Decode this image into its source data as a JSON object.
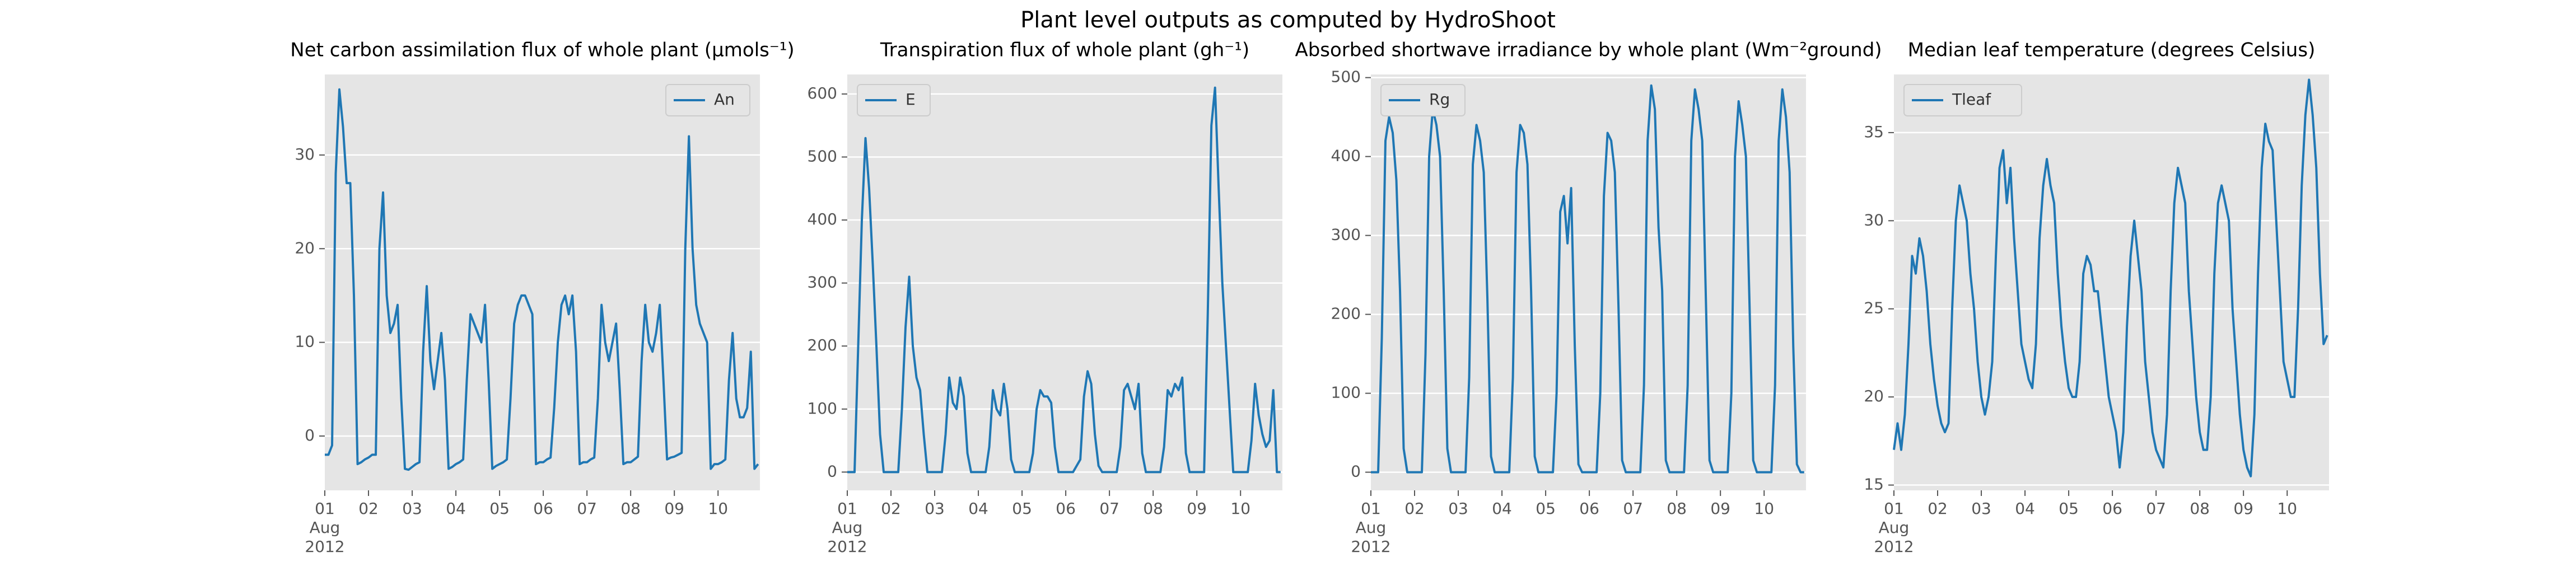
{
  "title": "Plant level outputs as computed by HydroShoot",
  "chart_data": [
    {
      "type": "line",
      "title": "Net carbon assimilation flux of whole plant (μmols⁻¹)",
      "legend": "upper right",
      "grid": "y",
      "x": [
        0,
        2,
        4,
        6,
        8,
        10,
        12,
        14,
        16,
        18,
        20,
        22,
        24,
        26,
        28,
        30,
        32,
        34,
        36,
        38,
        40,
        42,
        44,
        46,
        48,
        50,
        52,
        54,
        56,
        58,
        60,
        62,
        64,
        66,
        68,
        70,
        72,
        74,
        76,
        78,
        80,
        82,
        84,
        86,
        88,
        90,
        92,
        94,
        96,
        98,
        100,
        102,
        104,
        106,
        108,
        110,
        112,
        114,
        116,
        118,
        120,
        122,
        124,
        126,
        128,
        130,
        132,
        134,
        136,
        138,
        140,
        142,
        144,
        146,
        148,
        150,
        152,
        154,
        156,
        158,
        160,
        162,
        164,
        166,
        168,
        170,
        172,
        174,
        176,
        178,
        180,
        182,
        184,
        186,
        188,
        190,
        192,
        194,
        196,
        198,
        200,
        202,
        204,
        206,
        208,
        210,
        212,
        214,
        216,
        218,
        220,
        222,
        224,
        226,
        228,
        230,
        232,
        234,
        236,
        238
      ],
      "xlim": [
        0,
        239
      ],
      "xticks": [
        {
          "value": 0,
          "label": "01\nAug\n2012"
        },
        {
          "value": 24,
          "label": "02"
        },
        {
          "value": 48,
          "label": "03"
        },
        {
          "value": 72,
          "label": "04"
        },
        {
          "value": 96,
          "label": "05"
        },
        {
          "value": 120,
          "label": "06"
        },
        {
          "value": 144,
          "label": "07"
        },
        {
          "value": 168,
          "label": "08"
        },
        {
          "value": 192,
          "label": "09"
        },
        {
          "value": 216,
          "label": "10"
        }
      ],
      "ylim": [
        -5.8,
        38.6
      ],
      "yticks": [
        0,
        10,
        20,
        30
      ],
      "series": [
        {
          "name": "An",
          "color": "#1f77b4",
          "values": [
            -2,
            -2,
            -1,
            28,
            37,
            33,
            27,
            27,
            15,
            -3,
            -2.8,
            -2.5,
            -2.3,
            -2,
            -2,
            20,
            26,
            15,
            11,
            12,
            14,
            4,
            -3.5,
            -3.6,
            -3.3,
            -3,
            -2.8,
            9,
            16,
            8,
            5,
            8,
            11,
            6,
            -3.5,
            -3.3,
            -3,
            -2.8,
            -2.5,
            6,
            13,
            12,
            11,
            10,
            14,
            6,
            -3.5,
            -3.2,
            -3,
            -2.8,
            -2.5,
            4,
            12,
            14,
            15,
            15,
            14,
            13,
            -3,
            -2.8,
            -2.8,
            -2.5,
            -2.3,
            3,
            10,
            14,
            15,
            13,
            15,
            9,
            -3,
            -2.8,
            -2.8,
            -2.5,
            -2.3,
            4,
            14,
            10,
            8,
            10,
            12,
            5,
            -3,
            -2.8,
            -2.8,
            -2.5,
            -2.2,
            8,
            14,
            10,
            9,
            11,
            14,
            6,
            -2.5,
            -2.3,
            -2.2,
            -2,
            -1.8,
            20,
            32,
            20,
            14,
            12,
            11,
            10,
            -3.5,
            -3,
            -3,
            -2.8,
            -2.5,
            6,
            11,
            4,
            2,
            2,
            3,
            9,
            -3.5,
            -3
          ]
        }
      ]
    },
    {
      "type": "line",
      "title": "Transpiration flux of whole plant (gh⁻¹)",
      "legend": "upper left",
      "grid": "y",
      "x": [
        0,
        2,
        4,
        6,
        8,
        10,
        12,
        14,
        16,
        18,
        20,
        22,
        24,
        26,
        28,
        30,
        32,
        34,
        36,
        38,
        40,
        42,
        44,
        46,
        48,
        50,
        52,
        54,
        56,
        58,
        60,
        62,
        64,
        66,
        68,
        70,
        72,
        74,
        76,
        78,
        80,
        82,
        84,
        86,
        88,
        90,
        92,
        94,
        96,
        98,
        100,
        102,
        104,
        106,
        108,
        110,
        112,
        114,
        116,
        118,
        120,
        122,
        124,
        126,
        128,
        130,
        132,
        134,
        136,
        138,
        140,
        142,
        144,
        146,
        148,
        150,
        152,
        154,
        156,
        158,
        160,
        162,
        164,
        166,
        168,
        170,
        172,
        174,
        176,
        178,
        180,
        182,
        184,
        186,
        188,
        190,
        192,
        194,
        196,
        198,
        200,
        202,
        204,
        206,
        208,
        210,
        212,
        214,
        216,
        218,
        220,
        222,
        224,
        226,
        228,
        230,
        232,
        234,
        236,
        238
      ],
      "xlim": [
        0,
        239
      ],
      "xticks": [
        {
          "value": 0,
          "label": "01\nAug\n2012"
        },
        {
          "value": 24,
          "label": "02"
        },
        {
          "value": 48,
          "label": "03"
        },
        {
          "value": 72,
          "label": "04"
        },
        {
          "value": 96,
          "label": "05"
        },
        {
          "value": 120,
          "label": "06"
        },
        {
          "value": 144,
          "label": "07"
        },
        {
          "value": 168,
          "label": "08"
        },
        {
          "value": 192,
          "label": "09"
        },
        {
          "value": 216,
          "label": "10"
        }
      ],
      "ylim": [
        -29,
        631
      ],
      "yticks": [
        0,
        100,
        200,
        300,
        400,
        500,
        600
      ],
      "series": [
        {
          "name": "E",
          "color": "#1f77b4",
          "values": [
            0,
            0,
            0,
            200,
            400,
            530,
            450,
            330,
            200,
            60,
            0,
            0,
            0,
            0,
            0,
            100,
            230,
            310,
            200,
            150,
            130,
            60,
            0,
            0,
            0,
            0,
            0,
            60,
            150,
            110,
            100,
            150,
            120,
            30,
            0,
            0,
            0,
            0,
            0,
            40,
            130,
            100,
            90,
            140,
            100,
            20,
            0,
            0,
            0,
            0,
            0,
            30,
            100,
            130,
            120,
            120,
            110,
            40,
            0,
            0,
            0,
            0,
            0,
            10,
            20,
            120,
            160,
            140,
            60,
            10,
            0,
            0,
            0,
            0,
            0,
            40,
            130,
            140,
            120,
            100,
            140,
            30,
            0,
            0,
            0,
            0,
            0,
            40,
            130,
            120,
            140,
            130,
            150,
            30,
            0,
            0,
            0,
            0,
            0,
            250,
            550,
            610,
            450,
            300,
            200,
            100,
            0,
            0,
            0,
            0,
            0,
            50,
            140,
            90,
            60,
            40,
            50,
            130,
            0,
            0
          ]
        }
      ]
    },
    {
      "type": "line",
      "title": "Absorbed shortwave irradiance by whole plant (Wm⁻²ground)",
      "legend": "upper left",
      "grid": "y",
      "x": [
        0,
        2,
        4,
        6,
        8,
        10,
        12,
        14,
        16,
        18,
        20,
        22,
        24,
        26,
        28,
        30,
        32,
        34,
        36,
        38,
        40,
        42,
        44,
        46,
        48,
        50,
        52,
        54,
        56,
        58,
        60,
        62,
        64,
        66,
        68,
        70,
        72,
        74,
        76,
        78,
        80,
        82,
        84,
        86,
        88,
        90,
        92,
        94,
        96,
        98,
        100,
        102,
        104,
        106,
        108,
        110,
        112,
        114,
        116,
        118,
        120,
        122,
        124,
        126,
        128,
        130,
        132,
        134,
        136,
        138,
        140,
        142,
        144,
        146,
        148,
        150,
        152,
        154,
        156,
        158,
        160,
        162,
        164,
        166,
        168,
        170,
        172,
        174,
        176,
        178,
        180,
        182,
        184,
        186,
        188,
        190,
        192,
        194,
        196,
        198,
        200,
        202,
        204,
        206,
        208,
        210,
        212,
        214,
        216,
        218,
        220,
        222,
        224,
        226,
        228,
        230,
        232,
        234,
        236,
        238
      ],
      "xlim": [
        0,
        239
      ],
      "xticks": [
        {
          "value": 0,
          "label": "01\nAug\n2012"
        },
        {
          "value": 24,
          "label": "02"
        },
        {
          "value": 48,
          "label": "03"
        },
        {
          "value": 72,
          "label": "04"
        },
        {
          "value": 96,
          "label": "05"
        },
        {
          "value": 120,
          "label": "06"
        },
        {
          "value": 144,
          "label": "07"
        },
        {
          "value": 168,
          "label": "08"
        },
        {
          "value": 192,
          "label": "09"
        },
        {
          "value": 216,
          "label": "10"
        }
      ],
      "ylim": [
        -23,
        504
      ],
      "yticks": [
        0,
        100,
        200,
        300,
        400,
        500
      ],
      "series": [
        {
          "name": "Rg",
          "color": "#1f77b4",
          "values": [
            0,
            0,
            0,
            170,
            420,
            450,
            430,
            370,
            230,
            30,
            0,
            0,
            0,
            0,
            0,
            150,
            400,
            460,
            440,
            400,
            230,
            30,
            0,
            0,
            0,
            0,
            0,
            120,
            390,
            440,
            420,
            380,
            220,
            20,
            0,
            0,
            0,
            0,
            0,
            120,
            380,
            440,
            430,
            390,
            230,
            20,
            0,
            0,
            0,
            0,
            0,
            100,
            330,
            350,
            290,
            360,
            160,
            10,
            0,
            0,
            0,
            0,
            0,
            100,
            350,
            430,
            420,
            380,
            210,
            15,
            0,
            0,
            0,
            0,
            0,
            110,
            420,
            490,
            460,
            310,
            230,
            15,
            0,
            0,
            0,
            0,
            0,
            110,
            420,
            485,
            460,
            420,
            220,
            15,
            0,
            0,
            0,
            0,
            0,
            100,
            400,
            470,
            440,
            400,
            210,
            15,
            0,
            0,
            0,
            0,
            0,
            110,
            420,
            485,
            450,
            380,
            160,
            10,
            0,
            0
          ]
        }
      ]
    },
    {
      "type": "line",
      "title": "Median leaf temperature (degrees Celsius)",
      "legend": "upper left",
      "grid": "y",
      "x": [
        0,
        2,
        4,
        6,
        8,
        10,
        12,
        14,
        16,
        18,
        20,
        22,
        24,
        26,
        28,
        30,
        32,
        34,
        36,
        38,
        40,
        42,
        44,
        46,
        48,
        50,
        52,
        54,
        56,
        58,
        60,
        62,
        64,
        66,
        68,
        70,
        72,
        74,
        76,
        78,
        80,
        82,
        84,
        86,
        88,
        90,
        92,
        94,
        96,
        98,
        100,
        102,
        104,
        106,
        108,
        110,
        112,
        114,
        116,
        118,
        120,
        122,
        124,
        126,
        128,
        130,
        132,
        134,
        136,
        138,
        140,
        142,
        144,
        146,
        148,
        150,
        152,
        154,
        156,
        158,
        160,
        162,
        164,
        166,
        168,
        170,
        172,
        174,
        176,
        178,
        180,
        182,
        184,
        186,
        188,
        190,
        192,
        194,
        196,
        198,
        200,
        202,
        204,
        206,
        208,
        210,
        212,
        214,
        216,
        218,
        220,
        222,
        224,
        226,
        228,
        230,
        232,
        234,
        236,
        238
      ],
      "xlim": [
        0,
        239
      ],
      "xticks": [
        {
          "value": 0,
          "label": "01\nAug\n2012"
        },
        {
          "value": 24,
          "label": "02"
        },
        {
          "value": 48,
          "label": "03"
        },
        {
          "value": 72,
          "label": "04"
        },
        {
          "value": 96,
          "label": "05"
        },
        {
          "value": 120,
          "label": "06"
        },
        {
          "value": 144,
          "label": "07"
        },
        {
          "value": 168,
          "label": "08"
        },
        {
          "value": 192,
          "label": "09"
        },
        {
          "value": 216,
          "label": "10"
        }
      ],
      "ylim": [
        14.7,
        38.3
      ],
      "yticks": [
        15,
        20,
        25,
        30,
        35
      ],
      "series": [
        {
          "name": "Tleaf",
          "color": "#1f77b4",
          "values": [
            17,
            18.5,
            17,
            19,
            23,
            28,
            27,
            29,
            28,
            26,
            23,
            21,
            19.5,
            18.5,
            18,
            18.5,
            25,
            30,
            32,
            31,
            30,
            27,
            25,
            22,
            20,
            19,
            20,
            22,
            28,
            33,
            34,
            31,
            33,
            29,
            26,
            23,
            22,
            21,
            20.5,
            23,
            29,
            32,
            33.5,
            32,
            31,
            27,
            24,
            22,
            20.5,
            20,
            20,
            22,
            27,
            28,
            27.5,
            26,
            26,
            24,
            22,
            20,
            19,
            18,
            16,
            18,
            24,
            28,
            30,
            28,
            26,
            22,
            20,
            18,
            17,
            16.5,
            16,
            19,
            26,
            31,
            33,
            32,
            31,
            26,
            23,
            20,
            18,
            17,
            17,
            20,
            27,
            31,
            32,
            31,
            30,
            25,
            22,
            19,
            17,
            16,
            15.5,
            19,
            27,
            33,
            35.5,
            34.5,
            34,
            30,
            26,
            22,
            21,
            20,
            20,
            25,
            32,
            36,
            38,
            36,
            33,
            27,
            23,
            23.5
          ]
        }
      ]
    }
  ]
}
